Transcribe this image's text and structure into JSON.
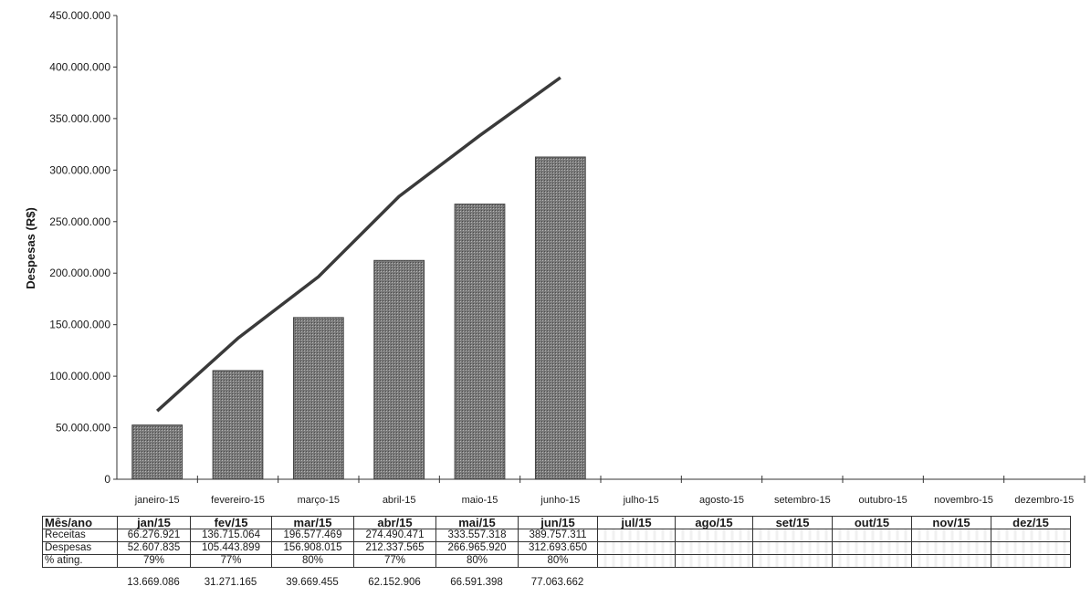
{
  "chart_data": {
    "type": "bar",
    "title": "",
    "xlabel": "",
    "ylabel": "Despesas (R$)",
    "ylim": [
      0,
      450000000
    ],
    "yticks": [
      "0",
      "50.000.000",
      "100.000.000",
      "150.000.000",
      "200.000.000",
      "250.000.000",
      "300.000.000",
      "350.000.000",
      "400.000.000",
      "450.000.000"
    ],
    "categories": [
      "janeiro-15",
      "fevereiro-15",
      "março-15",
      "abril-15",
      "maio-15",
      "junho-15",
      "julho-15",
      "agosto-15",
      "setembro-15",
      "outubro-15",
      "novembro-15",
      "dezembro-15"
    ],
    "series": [
      {
        "type": "bar",
        "values": [
          52607835,
          105443899,
          156908015,
          212337565,
          266965920,
          312693650,
          null,
          null,
          null,
          null,
          null,
          null
        ]
      },
      {
        "type": "line",
        "values": [
          66276921,
          136715064,
          196577469,
          274490471,
          333557318,
          389757311,
          null,
          null,
          null,
          null,
          null,
          null
        ]
      }
    ],
    "grid": false,
    "legend": "none",
    "colors": {
      "bar": "#6b6b6b",
      "line": "#3a3a3a"
    }
  },
  "table": {
    "headers": [
      "Mês/ano",
      "jan/15",
      "fev/15",
      "mar/15",
      "abr/15",
      "mai/15",
      "jun/15",
      "jul/15",
      "ago/15",
      "set/15",
      "out/15",
      "nov/15",
      "dez/15"
    ],
    "rows": [
      {
        "label": "Receitas",
        "values": [
          "66.276.921",
          "136.715.064",
          "196.577.469",
          "274.490.471",
          "333.557.318",
          "389.757.311",
          "",
          "",
          "",
          "",
          "",
          ""
        ]
      },
      {
        "label": "Despesas",
        "values": [
          "52.607.835",
          "105.443.899",
          "156.908.015",
          "212.337.565",
          "266.965.920",
          "312.693.650",
          "",
          "",
          "",
          "",
          "",
          ""
        ]
      },
      {
        "label": "% ating.",
        "values": [
          "79%",
          "77%",
          "80%",
          "77%",
          "80%",
          "80%",
          "",
          "",
          "",
          "",
          "",
          ""
        ]
      }
    ],
    "differences": [
      "13.669.086",
      "31.271.165",
      "39.669.455",
      "62.152.906",
      "66.591.398",
      "77.063.662"
    ]
  }
}
